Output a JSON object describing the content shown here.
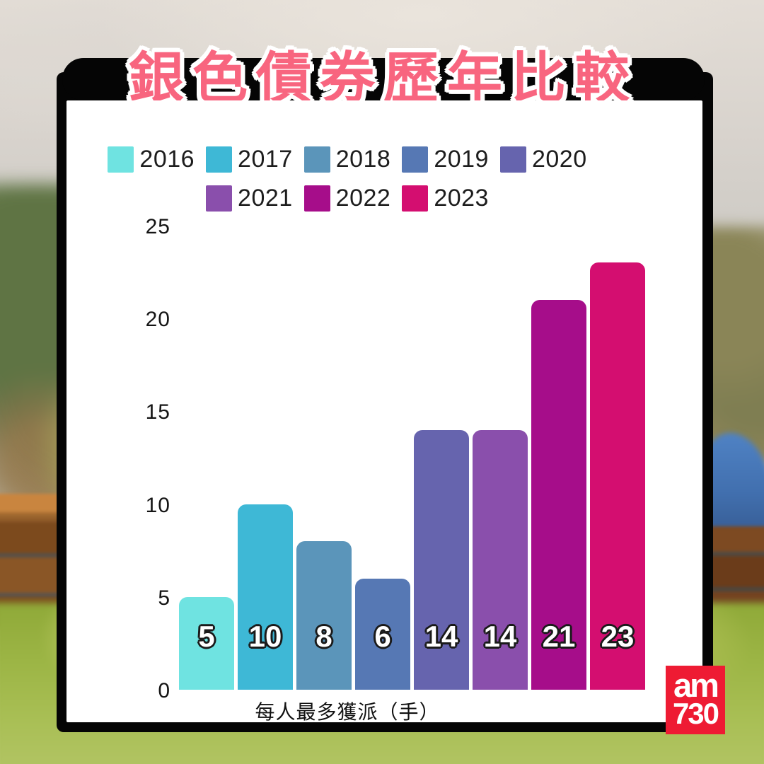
{
  "title": {
    "text": "銀色債券歷年比較",
    "color": "#f8657f",
    "outline_color": "#ffffff",
    "band_color": "#050505"
  },
  "chart_data": {
    "type": "bar",
    "title": "銀色債券歷年比較",
    "categories": [
      "2016",
      "2017",
      "2018",
      "2019",
      "2020",
      "2021",
      "2022",
      "2023"
    ],
    "values": [
      5,
      10,
      8,
      6,
      14,
      14,
      21,
      23
    ],
    "bar_colors": [
      "#6fe3e1",
      "#3eb8d6",
      "#5b95ba",
      "#5678b4",
      "#6664ae",
      "#8a4fac",
      "#a60d8a",
      "#d40e70"
    ],
    "value_labels": [
      "5",
      "10",
      "8",
      "6",
      "14",
      "14",
      "21",
      "23"
    ],
    "xlabel": "每人最多獲派（手）",
    "ylabel": "",
    "ylim": [
      0,
      25
    ],
    "yticks": [
      0,
      5,
      10,
      15,
      20,
      25
    ],
    "grid": false,
    "legend_position": "top",
    "legend_rows": [
      [
        "2016",
        "2017",
        "2018",
        "2019",
        "2020"
      ],
      [
        "2021",
        "2022",
        "2023"
      ]
    ]
  },
  "logo": {
    "line1": "am",
    "line2": "730",
    "bg_color": "#ee1b33",
    "text_color": "#ffffff"
  }
}
